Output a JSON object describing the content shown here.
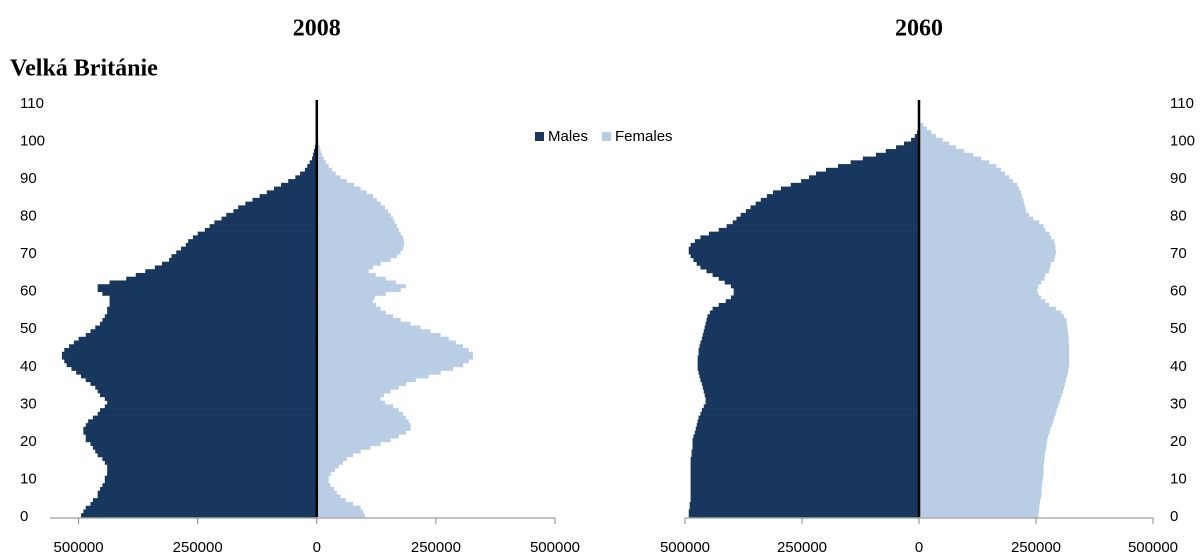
{
  "heading": "Velká Británie",
  "chart_data": [
    {
      "type": "pyramid",
      "title": "2008",
      "legend": "top-right",
      "yaxis": "left",
      "xlim": [
        -560000,
        500000
      ],
      "xticks": [
        {
          "value": -500000,
          "label": "500000"
        },
        {
          "value": -250000,
          "label": "250000"
        },
        0,
        250000,
        500000
      ],
      "ylim": [
        0,
        110
      ],
      "yticks": [
        0,
        10,
        20,
        30,
        40,
        50,
        60,
        70,
        80,
        90,
        100,
        110
      ],
      "x": [
        0,
        1,
        2,
        3,
        4,
        5,
        6,
        7,
        8,
        9,
        10,
        11,
        12,
        13,
        14,
        15,
        16,
        17,
        18,
        19,
        20,
        21,
        22,
        23,
        24,
        25,
        26,
        27,
        28,
        29,
        30,
        31,
        32,
        33,
        34,
        35,
        36,
        37,
        38,
        39,
        40,
        41,
        42,
        43,
        44,
        45,
        46,
        47,
        48,
        49,
        50,
        51,
        52,
        53,
        54,
        55,
        56,
        57,
        58,
        59,
        60,
        61,
        62,
        63,
        64,
        65,
        66,
        67,
        68,
        69,
        70,
        71,
        72,
        73,
        74,
        75,
        76,
        77,
        78,
        79,
        80,
        81,
        82,
        83,
        84,
        85,
        86,
        87,
        88,
        89,
        90,
        91,
        92,
        93,
        94,
        95,
        96,
        97,
        98,
        99,
        100,
        101,
        102,
        103,
        104
      ],
      "series": [
        {
          "name": "Males",
          "color": "#17375e",
          "side": "left",
          "values": [
            495000,
            490000,
            485000,
            475000,
            470000,
            460000,
            460000,
            455000,
            450000,
            445000,
            445000,
            440000,
            440000,
            440000,
            445000,
            450000,
            460000,
            465000,
            470000,
            475000,
            485000,
            485000,
            490000,
            490000,
            485000,
            480000,
            470000,
            460000,
            455000,
            445000,
            440000,
            445000,
            455000,
            460000,
            465000,
            475000,
            485000,
            495000,
            505000,
            515000,
            525000,
            530000,
            535000,
            535000,
            530000,
            520000,
            510000,
            500000,
            485000,
            475000,
            465000,
            455000,
            450000,
            445000,
            440000,
            440000,
            435000,
            435000,
            435000,
            450000,
            460000,
            460000,
            435000,
            400000,
            380000,
            360000,
            340000,
            325000,
            310000,
            305000,
            295000,
            285000,
            275000,
            270000,
            260000,
            250000,
            235000,
            225000,
            215000,
            200000,
            190000,
            175000,
            165000,
            150000,
            135000,
            120000,
            105000,
            90000,
            75000,
            60000,
            45000,
            35000,
            25000,
            20000,
            15000,
            10000,
            8000,
            6000,
            4000,
            2000,
            1000,
            500,
            300,
            200,
            100
          ]
        },
        {
          "name": "Females",
          "color": "#b9cde5",
          "side": "right",
          "values": [
            101000,
            97000,
            92000,
            76000,
            61000,
            50000,
            42000,
            36000,
            29000,
            25000,
            25000,
            29000,
            38000,
            46000,
            55000,
            63000,
            76000,
            92000,
            113000,
            134000,
            155000,
            172000,
            187000,
            197000,
            197000,
            193000,
            187000,
            181000,
            172000,
            160000,
            143000,
            134000,
            141000,
            155000,
            172000,
            187000,
            208000,
            235000,
            260000,
            286000,
            307000,
            319000,
            328000,
            328000,
            319000,
            307000,
            292000,
            277000,
            260000,
            239000,
            218000,
            197000,
            176000,
            160000,
            145000,
            134000,
            124000,
            118000,
            122000,
            145000,
            176000,
            187000,
            166000,
            145000,
            124000,
            109000,
            118000,
            134000,
            155000,
            168000,
            176000,
            181000,
            183000,
            183000,
            181000,
            176000,
            172000,
            168000,
            164000,
            160000,
            155000,
            149000,
            143000,
            134000,
            126000,
            118000,
            105000,
            92000,
            78000,
            63000,
            50000,
            40000,
            32000,
            25000,
            19000,
            15000,
            11000,
            8000,
            6000,
            4000,
            3000,
            2000,
            1000,
            500,
            200
          ]
        }
      ]
    },
    {
      "type": "pyramid",
      "title": "2060",
      "yaxis": "right",
      "xlim": [
        -500000,
        500000
      ],
      "xticks": [
        {
          "value": -500000,
          "label": "500000"
        },
        {
          "value": -250000,
          "label": "250000"
        },
        0,
        250000,
        500000
      ],
      "ylim": [
        0,
        110
      ],
      "yticks": [
        0,
        10,
        20,
        30,
        40,
        50,
        60,
        70,
        80,
        90,
        100,
        110
      ],
      "x": [
        0,
        1,
        2,
        3,
        4,
        5,
        6,
        7,
        8,
        9,
        10,
        11,
        12,
        13,
        14,
        15,
        16,
        17,
        18,
        19,
        20,
        21,
        22,
        23,
        24,
        25,
        26,
        27,
        28,
        29,
        30,
        31,
        32,
        33,
        34,
        35,
        36,
        37,
        38,
        39,
        40,
        41,
        42,
        43,
        44,
        45,
        46,
        47,
        48,
        49,
        50,
        51,
        52,
        53,
        54,
        55,
        56,
        57,
        58,
        59,
        60,
        61,
        62,
        63,
        64,
        65,
        66,
        67,
        68,
        69,
        70,
        71,
        72,
        73,
        74,
        75,
        76,
        77,
        78,
        79,
        80,
        81,
        82,
        83,
        84,
        85,
        86,
        87,
        88,
        89,
        90,
        91,
        92,
        93,
        94,
        95,
        96,
        97,
        98,
        99,
        100,
        101,
        102,
        103,
        104
      ],
      "series": [
        {
          "color": "#17375e",
          "side": "left",
          "values": [
            492000,
            492000,
            490000,
            490000,
            488000,
            488000,
            488000,
            488000,
            488000,
            488000,
            488000,
            488000,
            488000,
            488000,
            488000,
            488000,
            486000,
            486000,
            484000,
            484000,
            484000,
            482000,
            479000,
            477000,
            475000,
            473000,
            471000,
            467000,
            464000,
            460000,
            456000,
            456000,
            458000,
            460000,
            462000,
            464000,
            467000,
            469000,
            471000,
            473000,
            473000,
            473000,
            473000,
            471000,
            471000,
            469000,
            467000,
            464000,
            462000,
            460000,
            458000,
            456000,
            454000,
            452000,
            447000,
            441000,
            428000,
            413000,
            402000,
            396000,
            396000,
            402000,
            415000,
            428000,
            441000,
            454000,
            467000,
            475000,
            482000,
            488000,
            492000,
            492000,
            488000,
            479000,
            467000,
            449000,
            428000,
            411000,
            398000,
            390000,
            381000,
            370000,
            360000,
            349000,
            338000,
            325000,
            312000,
            295000,
            274000,
            252000,
            235000,
            220000,
            199000,
            173000,
            146000,
            120000,
            92000,
            71000,
            49000,
            32000,
            17000,
            9000,
            4000,
            2000,
            1000
          ]
        },
        {
          "color": "#b9cde5",
          "side": "right",
          "values": [
            255000,
            256000,
            257000,
            258000,
            259000,
            261000,
            262000,
            262000,
            263000,
            264000,
            265000,
            266000,
            266000,
            266000,
            267000,
            268000,
            269000,
            270000,
            272000,
            273000,
            274000,
            276000,
            279000,
            281000,
            284000,
            287000,
            289000,
            292000,
            294000,
            297000,
            300000,
            302000,
            305000,
            308000,
            310000,
            312000,
            314000,
            316000,
            318000,
            319000,
            321000,
            321000,
            321000,
            321000,
            321000,
            321000,
            320000,
            320000,
            319000,
            318000,
            317000,
            316000,
            315000,
            310000,
            304000,
            293000,
            278000,
            270000,
            261000,
            255000,
            253000,
            255000,
            261000,
            268000,
            270000,
            278000,
            280000,
            282000,
            289000,
            291000,
            293000,
            292000,
            291000,
            289000,
            282000,
            279000,
            270000,
            266000,
            257000,
            244000,
            235000,
            229000,
            227000,
            225000,
            223000,
            220000,
            218000,
            214000,
            210000,
            201000,
            193000,
            184000,
            175000,
            165000,
            150000,
            133000,
            116000,
            96000,
            79000,
            64000,
            51000,
            36000,
            26000,
            17000,
            9000
          ]
        }
      ]
    }
  ]
}
